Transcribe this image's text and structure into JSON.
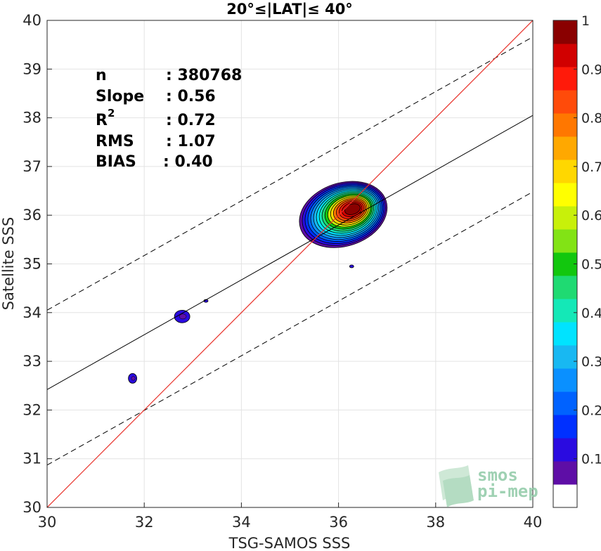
{
  "chart_data": {
    "type": "contour",
    "title": "20°≤|LAT|≤ 40°",
    "xlabel": "TSG-SAMOS SSS",
    "ylabel": "Satellite SSS",
    "xlim": [
      30,
      40
    ],
    "ylim": [
      30,
      40
    ],
    "xticks": [
      "30",
      "32",
      "34",
      "36",
      "38",
      "40"
    ],
    "yticks": [
      "30",
      "31",
      "32",
      "33",
      "34",
      "35",
      "36",
      "37",
      "38",
      "39",
      "40"
    ],
    "grid": true,
    "stats": {
      "n_label": "n",
      "n_value": ": 380768",
      "slope_label": "Slope",
      "slope_value": ": 0.56",
      "r2_label": "R",
      "r2_sup": "2",
      "r2_value": ": 0.72",
      "rms_label": "RMS",
      "rms_value": ": 1.07",
      "bias_label": "BIAS",
      "bias_value": ": 0.40"
    },
    "identity_line": {
      "x": [
        30,
        40
      ],
      "y": [
        30,
        40
      ],
      "color": "#e8312a"
    },
    "regression_line": {
      "x": [
        30,
        40
      ],
      "y": [
        32.42,
        38.05
      ],
      "color": "#000000"
    },
    "confidence_lines": [
      {
        "x": [
          30,
          40
        ],
        "y": [
          34.05,
          39.66
        ]
      },
      {
        "x": [
          30,
          40
        ],
        "y": [
          30.87,
          36.48
        ]
      }
    ],
    "density_peak": {
      "x": 36.3,
      "y": 36.13
    },
    "colorbar": {
      "ticks": [
        "0.1",
        "0.2",
        "0.3",
        "0.4",
        "0.5",
        "0.6",
        "0.7",
        "0.8",
        "0.9",
        "1"
      ],
      "tick_values": [
        0.1,
        0.2,
        0.3,
        0.4,
        0.5,
        0.6,
        0.7,
        0.8,
        0.9,
        1.0
      ],
      "colors": [
        "#ffffff",
        "#5e0ea6",
        "#2a0be0",
        "#0030ff",
        "#0062ff",
        "#0a90ff",
        "#18b8f2",
        "#00e3ff",
        "#14e8b7",
        "#1fda72",
        "#12c70e",
        "#82e315",
        "#c8f00a",
        "#ffff00",
        "#ffd700",
        "#ffa800",
        "#ff7700",
        "#ff4b0a",
        "#ff1a0a",
        "#d10000",
        "#8a0000"
      ]
    },
    "watermark": {
      "line1": "smos",
      "line2": "pi-mep"
    }
  }
}
